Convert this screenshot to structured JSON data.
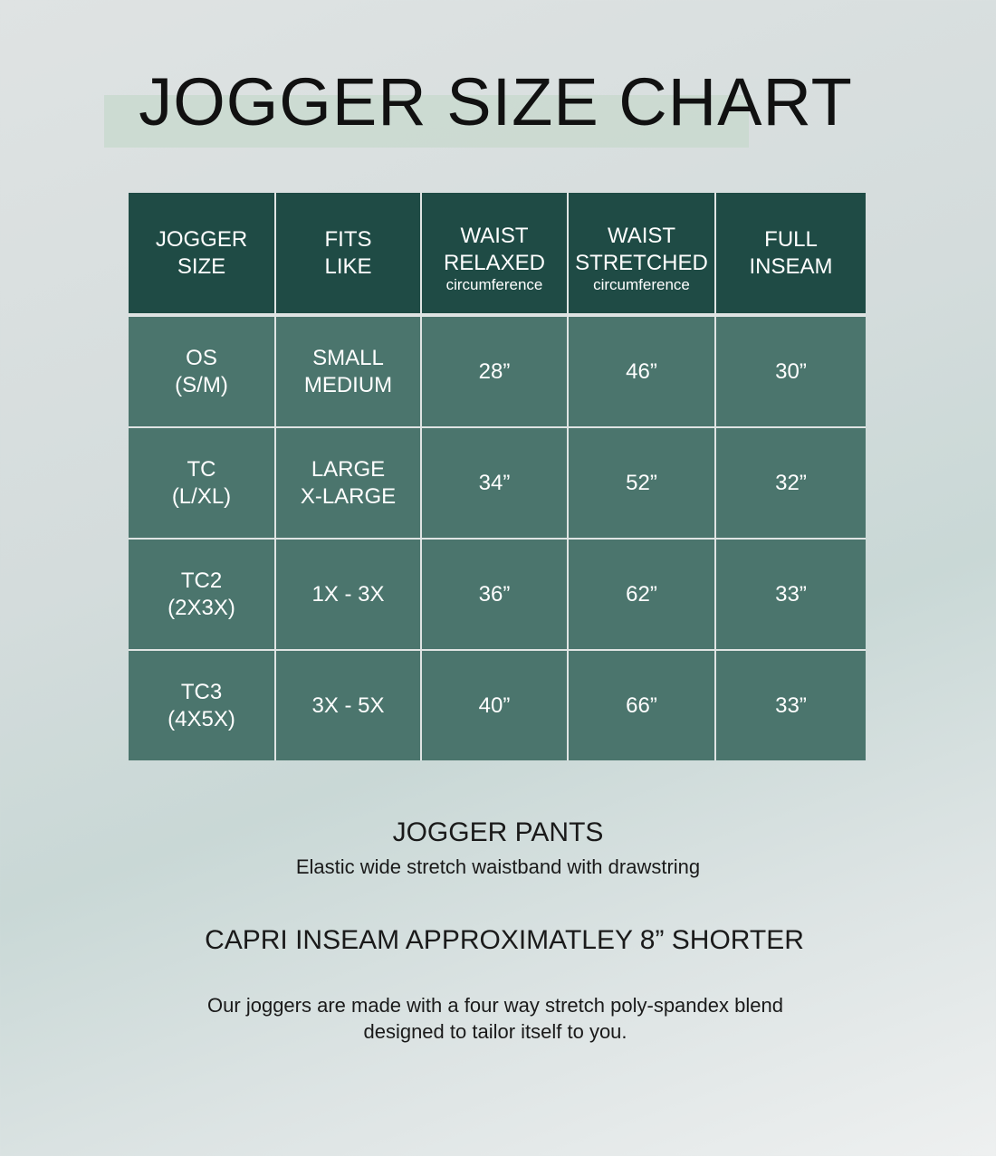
{
  "title": "JOGGER SIZE CHART",
  "table": {
    "headers": [
      {
        "line1": "JOGGER",
        "line2": "SIZE",
        "sub": ""
      },
      {
        "line1": "FITS",
        "line2": "LIKE",
        "sub": ""
      },
      {
        "line1": "WAIST",
        "line2": "RELAXED",
        "sub": "circumference"
      },
      {
        "line1": "WAIST",
        "line2": "STRETCHED",
        "sub": "circumference"
      },
      {
        "line1": "FULL",
        "line2": "INSEAM",
        "sub": ""
      }
    ],
    "rows": [
      {
        "size": [
          "OS",
          "(S/M)"
        ],
        "fits": [
          "SMALL",
          "MEDIUM"
        ],
        "relaxed": "28”",
        "stretched": "46”",
        "inseam": "30”"
      },
      {
        "size": [
          "TC",
          "(L/XL)"
        ],
        "fits": [
          "LARGE",
          "X-LARGE"
        ],
        "relaxed": "34”",
        "stretched": "52”",
        "inseam": "32”"
      },
      {
        "size": [
          "TC2",
          "(2X3X)"
        ],
        "fits": [
          "1X - 3X",
          ""
        ],
        "relaxed": "36”",
        "stretched": "62”",
        "inseam": "33”"
      },
      {
        "size": [
          "TC3",
          "(4X5X)"
        ],
        "fits": [
          "3X - 5X",
          ""
        ],
        "relaxed": "40”",
        "stretched": "66”",
        "inseam": "33”"
      }
    ]
  },
  "colors": {
    "header": "#1f4b45",
    "cell": "#4b756d",
    "title_highlight": "#c9d9cf"
  },
  "pants_heading": "JOGGER PANTS",
  "pants_desc": "Elastic wide stretch waistband with drawstring",
  "capri_note": "CAPRI INSEAM APPROXIMATLEY 8” SHORTER",
  "fabric_line1": "Our joggers are made with a four way stretch poly-spandex blend",
  "fabric_line2": "designed to tailor itself to you."
}
